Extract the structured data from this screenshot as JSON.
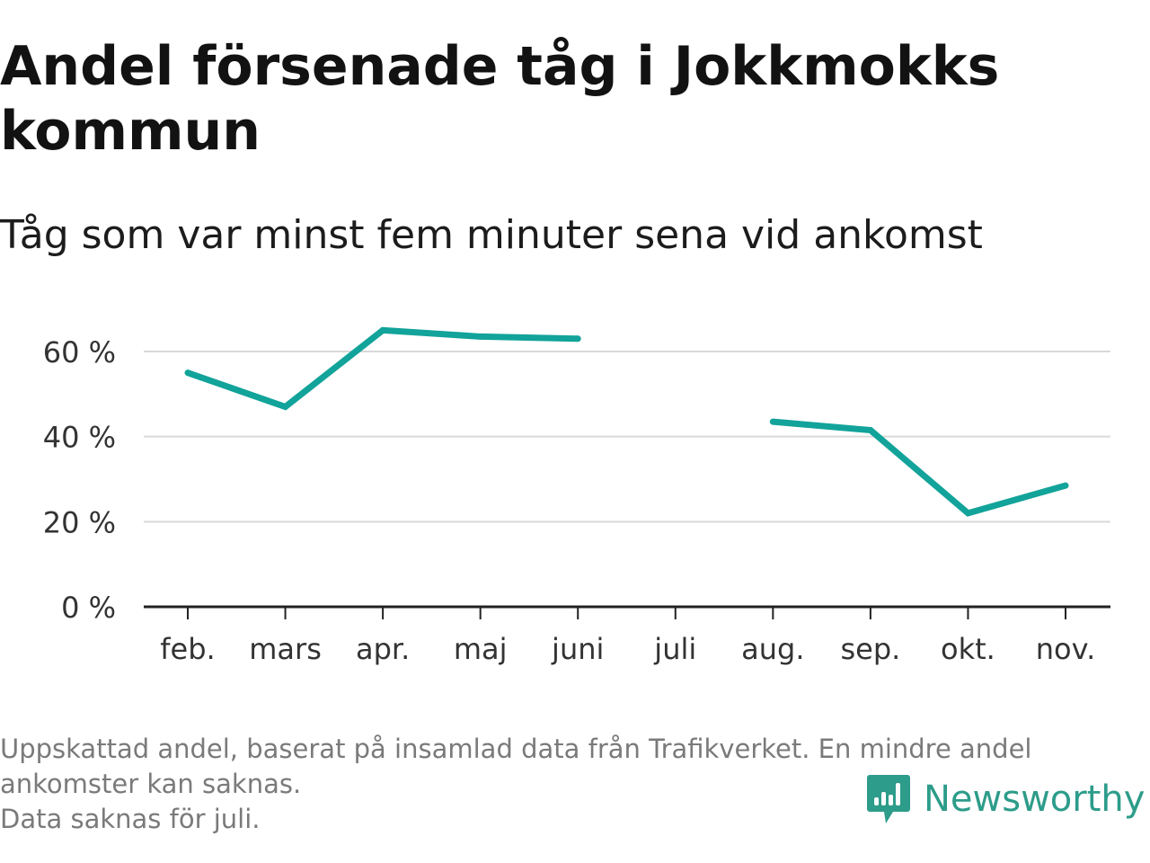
{
  "title": "Andel försenade tåg i Jokkmokks kommun",
  "subtitle": "Tåg som var minst fem minuter sena vid ankomst",
  "footer": {
    "note_line1": "Uppskattad andel, baserat på insamlad data från Trafikverket. En mindre andel ankomster kan saknas.",
    "note_line2": "Data saknas för juli."
  },
  "brand": {
    "name": "Newsworthy",
    "icon": "newsworthy-logo-icon"
  },
  "colors": {
    "line": "#12a39a",
    "grid": "#d9d9d9",
    "axis": "#222222",
    "brand": "#2d9c8a"
  },
  "chart_data": {
    "type": "line",
    "title": "Andel försenade tåg i Jokkmokks kommun",
    "subtitle": "Tåg som var minst fem minuter sena vid ankomst",
    "categories": [
      "feb.",
      "mars",
      "apr.",
      "maj",
      "juni",
      "juli",
      "aug.",
      "sep.",
      "okt.",
      "nov."
    ],
    "series": [
      {
        "values": [
          55,
          47,
          65,
          63.5,
          63,
          null,
          43.5,
          41.5,
          22,
          28.5
        ]
      }
    ],
    "ylim": [
      0,
      70
    ],
    "yticks": [
      0,
      20,
      40,
      60
    ],
    "ytick_labels": [
      "0 %",
      "20 %",
      "40 %",
      "60 %"
    ],
    "xlabel": "",
    "ylabel": "",
    "grid": true,
    "legend": "none"
  }
}
